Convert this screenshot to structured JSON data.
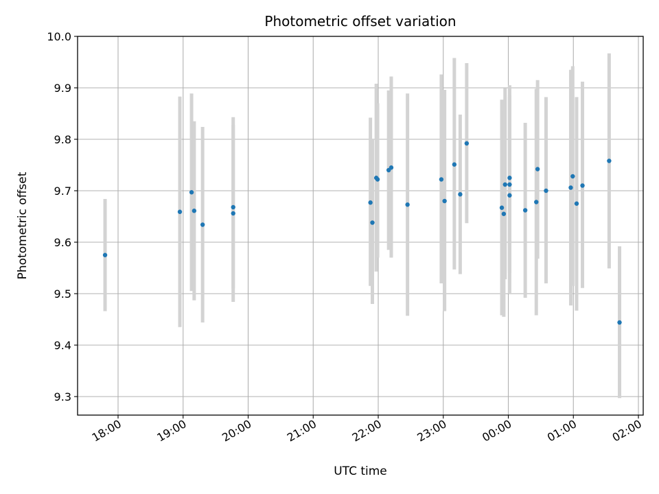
{
  "chart_data": {
    "type": "scatter",
    "title": "Photometric offset variation",
    "xlabel": "UTC time",
    "ylabel": "Photometric offset",
    "x_unit": "UTC time of day (hours; values past 24 are after midnight)",
    "xlim": [
      17.7,
      26.0
    ],
    "ylim": [
      9.265,
      10.0
    ],
    "x_ticks": [
      {
        "value": 18,
        "label": "18:00"
      },
      {
        "value": 19,
        "label": "19:00"
      },
      {
        "value": 20,
        "label": "20:00"
      },
      {
        "value": 21,
        "label": "21:00"
      },
      {
        "value": 22,
        "label": "22:00"
      },
      {
        "value": 23,
        "label": "23:00"
      },
      {
        "value": 24,
        "label": "00:00"
      },
      {
        "value": 25,
        "label": "01:00"
      },
      {
        "value": 26,
        "label": "02:00"
      }
    ],
    "y_ticks": [
      {
        "value": 9.3,
        "label": "9.3"
      },
      {
        "value": 9.4,
        "label": "9.4"
      },
      {
        "value": 9.5,
        "label": "9.5"
      },
      {
        "value": 9.6,
        "label": "9.6"
      },
      {
        "value": 9.7,
        "label": "9.7"
      },
      {
        "value": 9.8,
        "label": "9.8"
      },
      {
        "value": 9.9,
        "label": "9.9"
      },
      {
        "value": 10.0,
        "label": "10.0"
      }
    ],
    "grid": true,
    "point_color": "#1f77b4",
    "errorbar_color": "#d3d3d3",
    "series": [
      {
        "points": [
          {
            "x": 17.8,
            "y": 9.575,
            "lo": 9.466,
            "hi": 9.684
          },
          {
            "x": 18.95,
            "y": 9.659,
            "lo": 9.435,
            "hi": 9.883
          },
          {
            "x": 19.13,
            "y": 9.697,
            "lo": 9.505,
            "hi": 9.889
          },
          {
            "x": 19.17,
            "y": 9.661,
            "lo": 9.487,
            "hi": 9.835
          },
          {
            "x": 19.3,
            "y": 9.634,
            "lo": 9.444,
            "hi": 9.824
          },
          {
            "x": 19.77,
            "y": 9.668,
            "lo": 9.51,
            "hi": 9.843
          },
          {
            "x": 19.77,
            "y": 9.656,
            "lo": 9.484,
            "hi": 9.828
          },
          {
            "x": 21.88,
            "y": 9.677,
            "lo": 9.515,
            "hi": 9.842
          },
          {
            "x": 21.91,
            "y": 9.638,
            "lo": 9.48,
            "hi": 9.8
          },
          {
            "x": 21.97,
            "y": 9.725,
            "lo": 9.543,
            "hi": 9.908
          },
          {
            "x": 21.99,
            "y": 9.722,
            "lo": 9.57,
            "hi": 9.87
          },
          {
            "x": 22.16,
            "y": 9.74,
            "lo": 9.585,
            "hi": 9.895
          },
          {
            "x": 22.2,
            "y": 9.745,
            "lo": 9.57,
            "hi": 9.922
          },
          {
            "x": 22.45,
            "y": 9.673,
            "lo": 9.457,
            "hi": 9.889
          },
          {
            "x": 22.97,
            "y": 9.722,
            "lo": 9.52,
            "hi": 9.926
          },
          {
            "x": 23.02,
            "y": 9.68,
            "lo": 9.466,
            "hi": 9.896
          },
          {
            "x": 23.17,
            "y": 9.751,
            "lo": 9.547,
            "hi": 9.958
          },
          {
            "x": 23.26,
            "y": 9.693,
            "lo": 9.538,
            "hi": 9.848
          },
          {
            "x": 23.36,
            "y": 9.792,
            "lo": 9.637,
            "hi": 9.948
          },
          {
            "x": 23.9,
            "y": 9.667,
            "lo": 9.458,
            "hi": 9.877
          },
          {
            "x": 23.93,
            "y": 9.655,
            "lo": 9.455,
            "hi": 9.855
          },
          {
            "x": 23.95,
            "y": 9.712,
            "lo": 9.528,
            "hi": 9.899
          },
          {
            "x": 24.02,
            "y": 9.725,
            "lo": 9.545,
            "hi": 9.905
          },
          {
            "x": 24.02,
            "y": 9.712,
            "lo": 9.54,
            "hi": 9.886
          },
          {
            "x": 24.02,
            "y": 9.691,
            "lo": 9.5,
            "hi": 9.882
          },
          {
            "x": 24.26,
            "y": 9.662,
            "lo": 9.492,
            "hi": 9.832
          },
          {
            "x": 24.43,
            "y": 9.678,
            "lo": 9.458,
            "hi": 9.898
          },
          {
            "x": 24.45,
            "y": 9.742,
            "lo": 9.568,
            "hi": 9.915
          },
          {
            "x": 24.58,
            "y": 9.7,
            "lo": 9.52,
            "hi": 9.882
          },
          {
            "x": 24.96,
            "y": 9.706,
            "lo": 9.477,
            "hi": 9.935
          },
          {
            "x": 24.99,
            "y": 9.728,
            "lo": 9.515,
            "hi": 9.942
          },
          {
            "x": 25.05,
            "y": 9.675,
            "lo": 9.467,
            "hi": 9.882
          },
          {
            "x": 25.14,
            "y": 9.71,
            "lo": 9.511,
            "hi": 9.912
          },
          {
            "x": 25.55,
            "y": 9.758,
            "lo": 9.549,
            "hi": 9.967
          },
          {
            "x": 25.71,
            "y": 9.444,
            "lo": 9.297,
            "hi": 9.592
          }
        ]
      }
    ]
  }
}
